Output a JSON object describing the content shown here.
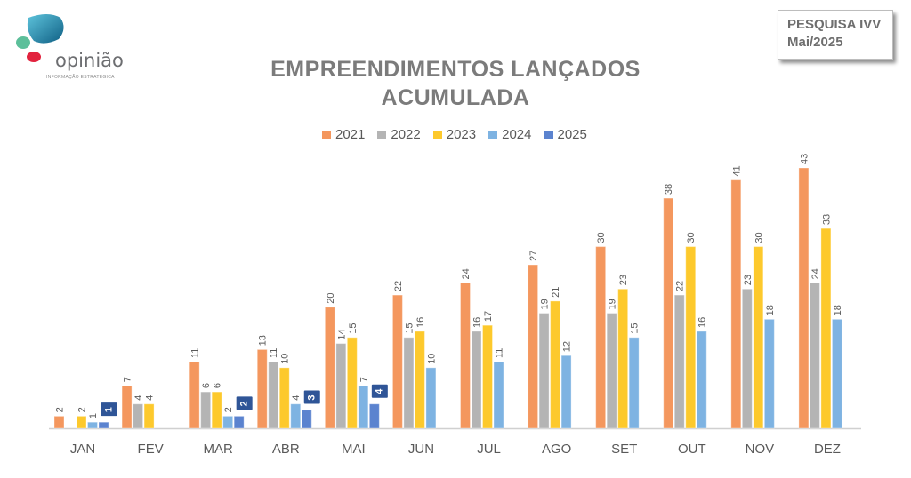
{
  "logo": {
    "name": "opinião",
    "tagline": "INFORMAÇÃO ESTRATÉGICA"
  },
  "badge": {
    "line1": "PESQUISA IVV",
    "line2": "Mai/2025"
  },
  "colors": {
    "2021": "#f4975e",
    "2022": "#b4b4b4",
    "2023": "#fdc92c",
    "2024": "#7eb3e2",
    "2025": "#5b83cf",
    "callout": "#2f5597"
  },
  "chart_data": {
    "type": "bar",
    "title": "EMPREENDIMENTOS LANÇADOS",
    "subtitle": "ACUMULADA",
    "xlabel": "",
    "ylabel": "",
    "ylim": [
      0,
      45
    ],
    "grid": false,
    "legend_position": "top",
    "categories": [
      "JAN",
      "FEV",
      "MAR",
      "ABR",
      "MAI",
      "JUN",
      "JUL",
      "AGO",
      "SET",
      "OUT",
      "NOV",
      "DEZ"
    ],
    "series": [
      {
        "name": "2021",
        "values": [
          2,
          7,
          11,
          13,
          20,
          22,
          24,
          27,
          30,
          38,
          41,
          43
        ]
      },
      {
        "name": "2022",
        "values": [
          null,
          4,
          6,
          11,
          14,
          15,
          16,
          19,
          19,
          22,
          23,
          24
        ]
      },
      {
        "name": "2023",
        "values": [
          2,
          4,
          6,
          10,
          15,
          16,
          17,
          21,
          23,
          30,
          30,
          33
        ]
      },
      {
        "name": "2024",
        "values": [
          1,
          null,
          2,
          4,
          7,
          10,
          11,
          12,
          15,
          16,
          18,
          18
        ]
      },
      {
        "name": "2025",
        "values": [
          1,
          null,
          2,
          3,
          4,
          null,
          null,
          null,
          null,
          null,
          null,
          null
        ]
      }
    ]
  }
}
